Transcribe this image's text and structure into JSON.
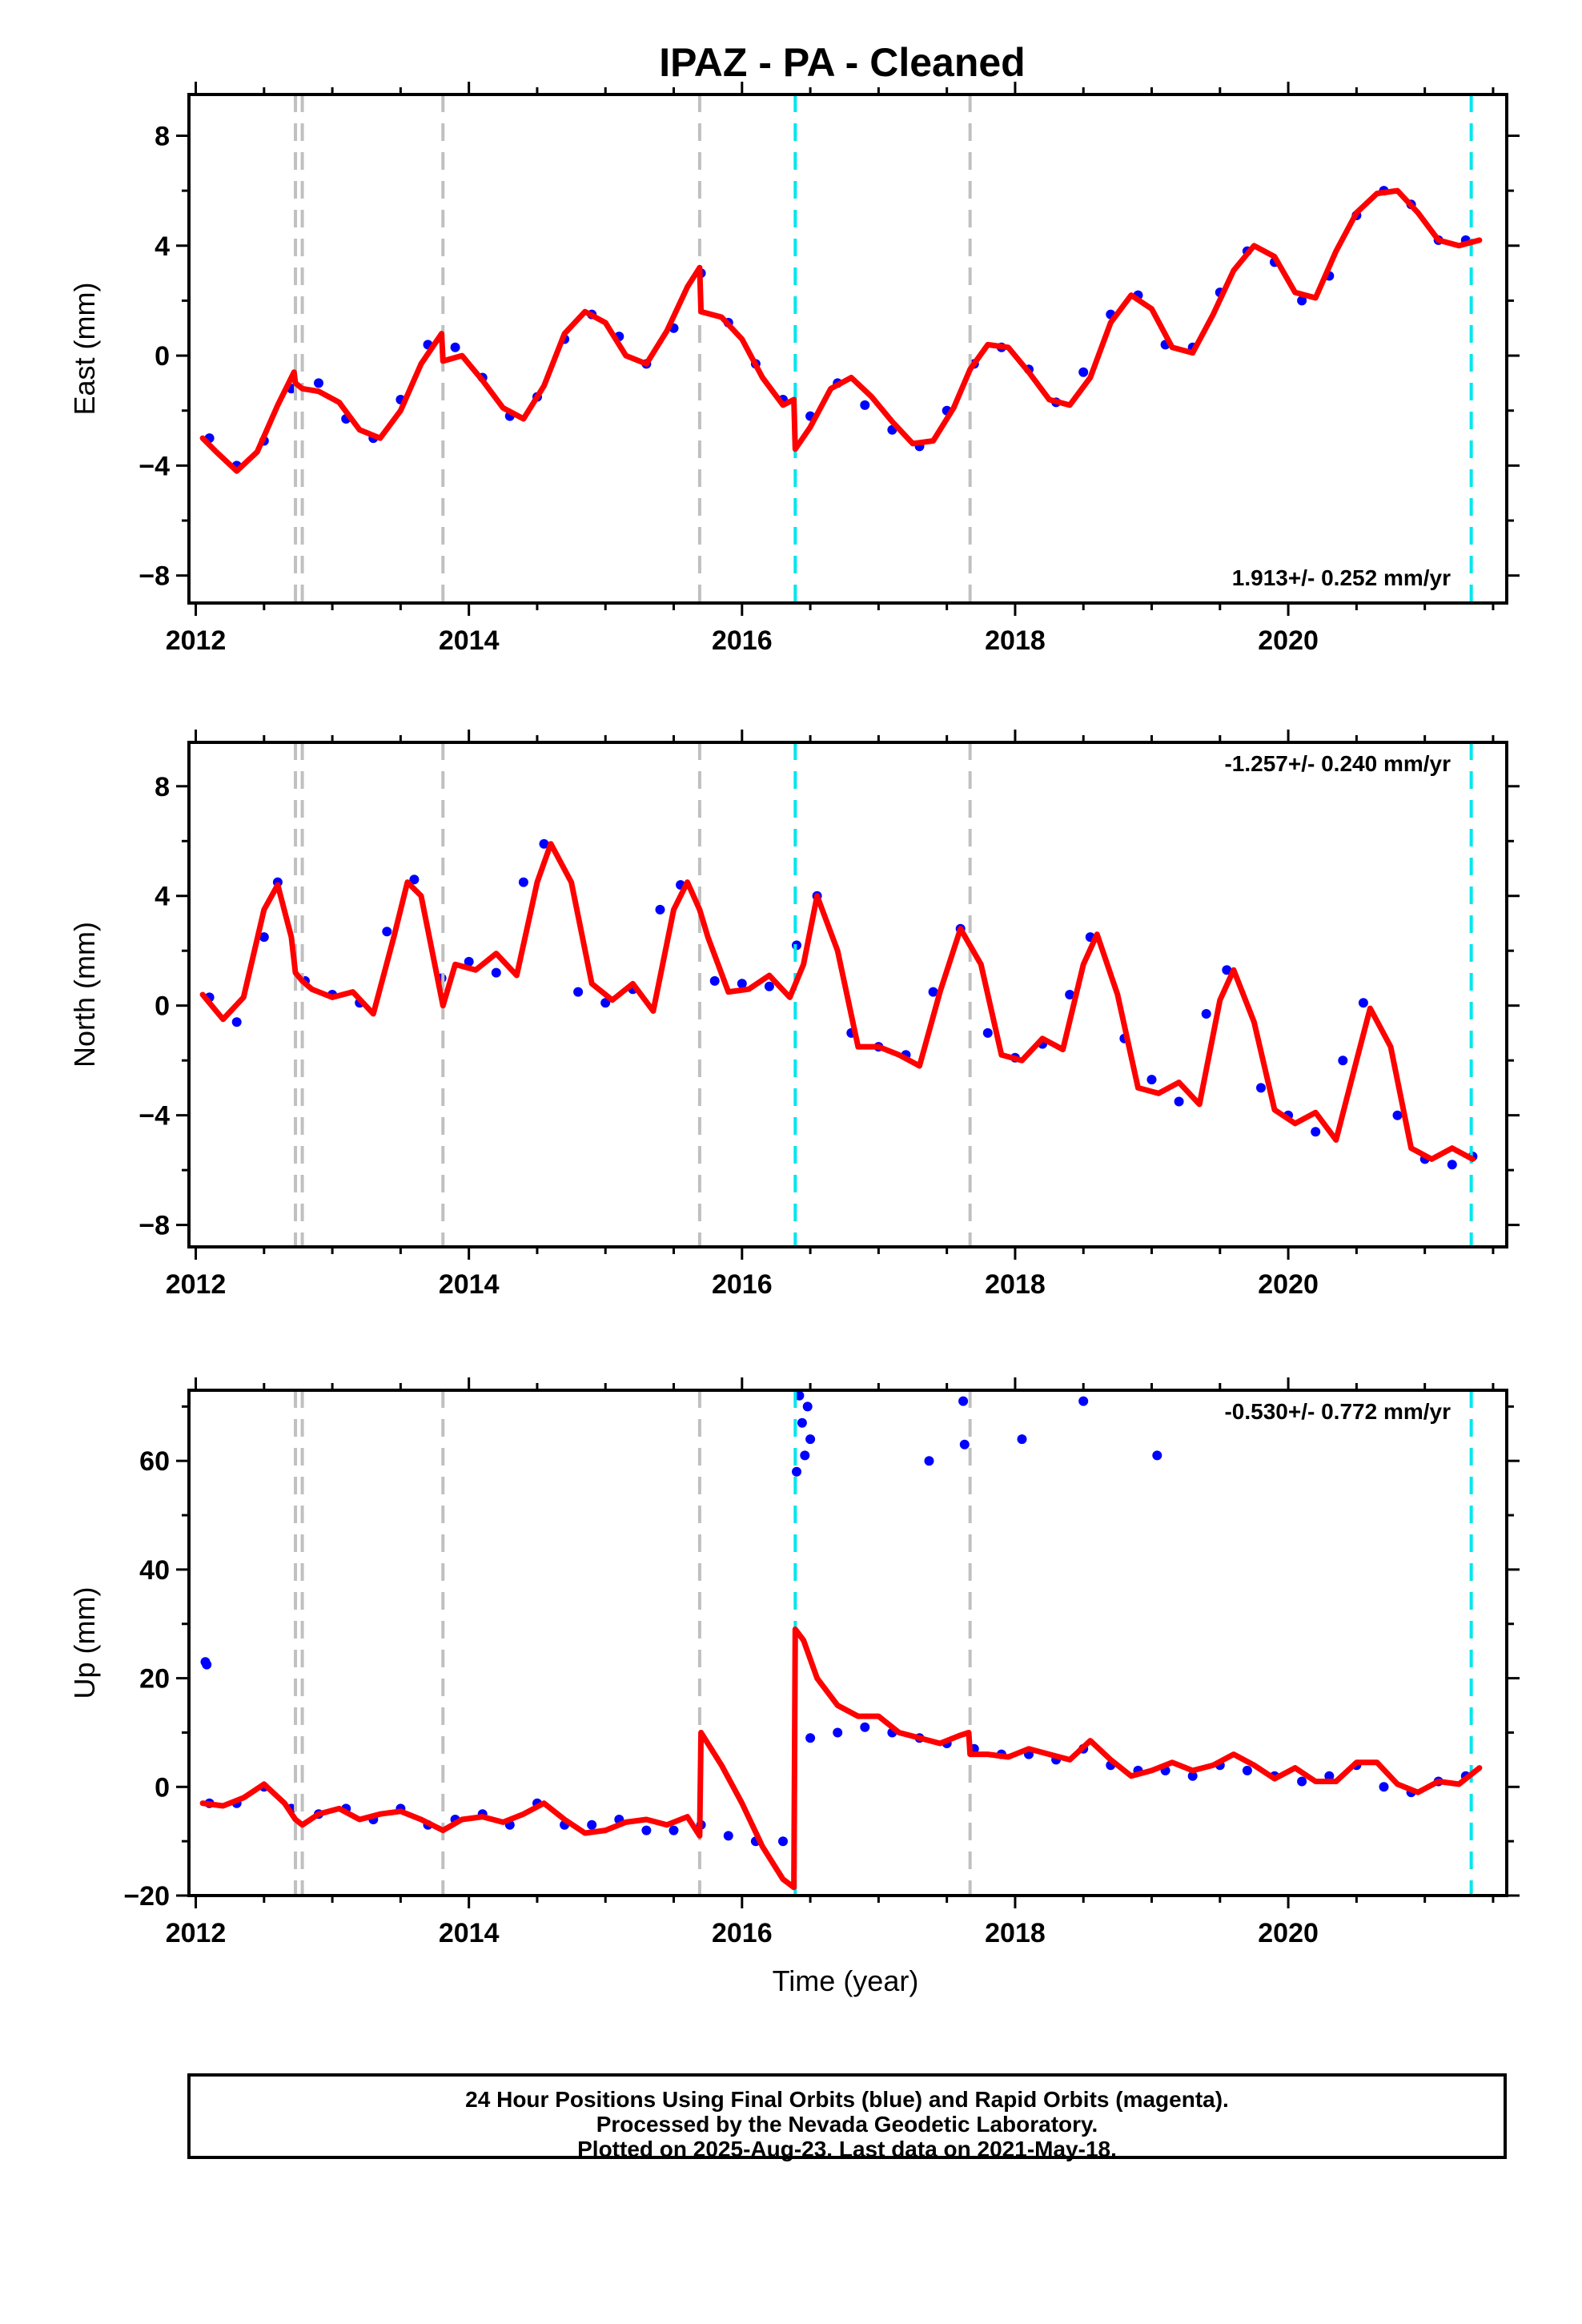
{
  "title": "IPAZ  - PA - Cleaned",
  "colors": {
    "points": "#0000ff",
    "model": "#ff0000",
    "equipment_change": "#c0c0c0",
    "earthquake": "#00e5ee",
    "frame": "#000000"
  },
  "x_axis": {
    "label": "Time (year)",
    "range": [
      2011.95,
      2021.6
    ],
    "ticks": [
      "2012",
      "2014",
      "2016",
      "2018",
      "2020"
    ],
    "minor_step_years": 0.5
  },
  "events": {
    "equipment_changes": [
      2012.73,
      2012.78,
      2013.81,
      2015.69,
      2017.67
    ],
    "earthquakes": [
      2016.39,
      2021.34
    ]
  },
  "footer": {
    "line1": "24 Hour Positions Using Final Orbits (blue) and Rapid Orbits (magenta).",
    "line2": "Processed by the Nevada Geodetic Laboratory.",
    "line3": "Plotted on 2025-Aug-23. Last data on 2021-May-18."
  },
  "chart_data": [
    {
      "type": "scatter",
      "component": "east",
      "ylabel": "East (mm)",
      "ylim": [
        -9,
        9.5
      ],
      "yticks": [
        -8,
        -4,
        0,
        4,
        8
      ],
      "rate_text": "1.913+/- 0.252 mm/yr",
      "rate_position": "bottom-right",
      "grid": false,
      "series": [
        {
          "style": "points",
          "x": [
            2012.1,
            2012.3,
            2012.5,
            2012.7,
            2012.9,
            2013.1,
            2013.3,
            2013.5,
            2013.7,
            2013.9,
            2014.1,
            2014.3,
            2014.5,
            2014.7,
            2014.9,
            2015.1,
            2015.3,
            2015.5,
            2015.7,
            2015.9,
            2016.1,
            2016.3,
            2016.5,
            2016.7,
            2016.9,
            2017.1,
            2017.3,
            2017.5,
            2017.7,
            2017.9,
            2018.1,
            2018.3,
            2018.5,
            2018.7,
            2018.9,
            2019.1,
            2019.3,
            2019.5,
            2019.7,
            2019.9,
            2020.1,
            2020.3,
            2020.5,
            2020.7,
            2020.9,
            2021.1,
            2021.3
          ],
          "y": [
            -3.0,
            -4.0,
            -3.1,
            -1.2,
            -1.0,
            -2.3,
            -3.0,
            -1.6,
            0.4,
            0.3,
            -0.8,
            -2.2,
            -1.5,
            0.6,
            1.5,
            0.7,
            -0.3,
            1.0,
            3.0,
            1.2,
            -0.3,
            -1.6,
            -2.2,
            -1.0,
            -1.8,
            -2.7,
            -3.3,
            -2.0,
            -0.3,
            0.3,
            -0.5,
            -1.7,
            -0.6,
            1.5,
            2.2,
            0.4,
            0.3,
            2.3,
            3.8,
            3.4,
            2.0,
            2.9,
            5.1,
            6.0,
            5.5,
            4.2,
            4.2
          ]
        },
        {
          "style": "line",
          "x": [
            2012.05,
            2012.15,
            2012.3,
            2012.45,
            2012.6,
            2012.72,
            2012.73,
            2012.78,
            2012.9,
            2013.05,
            2013.2,
            2013.35,
            2013.5,
            2013.65,
            2013.8,
            2013.81,
            2013.95,
            2014.1,
            2014.25,
            2014.4,
            2014.55,
            2014.7,
            2014.85,
            2015.0,
            2015.15,
            2015.3,
            2015.45,
            2015.6,
            2015.69,
            2015.7,
            2015.85,
            2016.0,
            2016.15,
            2016.3,
            2016.38,
            2016.39,
            2016.5,
            2016.65,
            2016.8,
            2016.95,
            2017.1,
            2017.25,
            2017.4,
            2017.55,
            2017.67,
            2017.8,
            2017.95,
            2018.1,
            2018.25,
            2018.4,
            2018.55,
            2018.7,
            2018.85,
            2019.0,
            2019.15,
            2019.3,
            2019.45,
            2019.6,
            2019.75,
            2019.9,
            2020.05,
            2020.2,
            2020.35,
            2020.5,
            2020.65,
            2020.8,
            2020.95,
            2021.1,
            2021.25,
            2021.4
          ],
          "y": [
            -3.0,
            -3.5,
            -4.2,
            -3.5,
            -1.8,
            -0.6,
            -1.0,
            -1.2,
            -1.3,
            -1.7,
            -2.7,
            -3.0,
            -2.0,
            -0.3,
            0.8,
            -0.2,
            0.0,
            -0.9,
            -1.9,
            -2.3,
            -1.1,
            0.8,
            1.6,
            1.2,
            0.0,
            -0.3,
            0.9,
            2.5,
            3.2,
            1.6,
            1.4,
            0.6,
            -0.8,
            -1.8,
            -1.6,
            -3.4,
            -2.6,
            -1.2,
            -0.8,
            -1.5,
            -2.4,
            -3.2,
            -3.1,
            -1.9,
            -0.5,
            0.4,
            0.3,
            -0.6,
            -1.6,
            -1.8,
            -0.8,
            1.2,
            2.2,
            1.7,
            0.3,
            0.1,
            1.5,
            3.1,
            4.0,
            3.6,
            2.3,
            2.1,
            3.8,
            5.2,
            5.9,
            6.0,
            5.2,
            4.2,
            4.0,
            4.2
          ]
        }
      ]
    },
    {
      "type": "scatter",
      "component": "north",
      "ylabel": "North (mm)",
      "ylim": [
        -8.8,
        9.6
      ],
      "yticks": [
        -8,
        -4,
        0,
        4,
        8
      ],
      "rate_text": "-1.257+/- 0.240 mm/yr",
      "rate_position": "top-right",
      "grid": false,
      "series": [
        {
          "style": "points",
          "x": [
            2012.1,
            2012.3,
            2012.5,
            2012.6,
            2012.8,
            2013.0,
            2013.2,
            2013.4,
            2013.6,
            2013.8,
            2014.0,
            2014.2,
            2014.4,
            2014.55,
            2014.8,
            2015.0,
            2015.2,
            2015.4,
            2015.55,
            2015.8,
            2016.0,
            2016.2,
            2016.4,
            2016.55,
            2016.8,
            2017.0,
            2017.2,
            2017.4,
            2017.6,
            2017.8,
            2018.0,
            2018.2,
            2018.4,
            2018.55,
            2018.8,
            2019.0,
            2019.2,
            2019.4,
            2019.55,
            2019.8,
            2020.0,
            2020.2,
            2020.4,
            2020.55,
            2020.8,
            2021.0,
            2021.2,
            2021.35
          ],
          "y": [
            0.3,
            -0.6,
            2.5,
            4.5,
            0.9,
            0.4,
            0.1,
            2.7,
            4.6,
            1.0,
            1.6,
            1.2,
            4.5,
            5.9,
            0.5,
            0.1,
            0.6,
            3.5,
            4.4,
            0.9,
            0.8,
            0.7,
            2.2,
            4.0,
            -1.0,
            -1.5,
            -1.8,
            0.5,
            2.8,
            -1.0,
            -1.9,
            -1.4,
            0.4,
            2.5,
            -1.2,
            -2.7,
            -3.5,
            -0.3,
            1.3,
            -3.0,
            -4.0,
            -4.6,
            -2.0,
            0.1,
            -4.0,
            -5.6,
            -5.8,
            -5.5
          ]
        },
        {
          "style": "line",
          "x": [
            2012.05,
            2012.2,
            2012.35,
            2012.5,
            2012.6,
            2012.7,
            2012.73,
            2012.78,
            2012.85,
            2013.0,
            2013.15,
            2013.3,
            2013.45,
            2013.55,
            2013.65,
            2013.81,
            2013.9,
            2014.05,
            2014.2,
            2014.35,
            2014.5,
            2014.6,
            2014.75,
            2014.9,
            2015.05,
            2015.2,
            2015.35,
            2015.5,
            2015.6,
            2015.69,
            2015.75,
            2015.9,
            2016.05,
            2016.2,
            2016.35,
            2016.45,
            2016.55,
            2016.7,
            2016.85,
            2017.0,
            2017.15,
            2017.3,
            2017.45,
            2017.6,
            2017.75,
            2017.9,
            2018.05,
            2018.2,
            2018.35,
            2018.5,
            2018.6,
            2018.75,
            2018.9,
            2019.05,
            2019.2,
            2019.35,
            2019.5,
            2019.6,
            2019.75,
            2019.9,
            2020.05,
            2020.2,
            2020.35,
            2020.5,
            2020.6,
            2020.75,
            2020.9,
            2021.05,
            2021.2,
            2021.35
          ],
          "y": [
            0.4,
            -0.5,
            0.3,
            3.5,
            4.4,
            2.5,
            1.2,
            0.9,
            0.6,
            0.3,
            0.5,
            -0.3,
            2.5,
            4.5,
            4.0,
            0.0,
            1.5,
            1.3,
            1.9,
            1.1,
            4.5,
            5.9,
            4.5,
            0.8,
            0.2,
            0.8,
            -0.2,
            3.5,
            4.5,
            3.5,
            2.5,
            0.5,
            0.6,
            1.1,
            0.3,
            1.5,
            4.0,
            2.0,
            -1.5,
            -1.5,
            -1.8,
            -2.2,
            0.5,
            2.8,
            1.5,
            -1.8,
            -2.0,
            -1.2,
            -1.6,
            1.5,
            2.6,
            0.4,
            -3.0,
            -3.2,
            -2.8,
            -3.6,
            0.2,
            1.3,
            -0.6,
            -3.8,
            -4.3,
            -3.9,
            -4.9,
            -2.0,
            -0.1,
            -1.5,
            -5.2,
            -5.6,
            -5.2,
            -5.6
          ]
        }
      ]
    },
    {
      "type": "scatter",
      "component": "up",
      "ylabel": "Up (mm)",
      "ylim": [
        -20,
        73
      ],
      "yticks": [
        -20,
        0,
        20,
        40,
        60
      ],
      "rate_text": "-0.530+/- 0.772 mm/yr",
      "rate_position": "top-right",
      "grid": false,
      "series": [
        {
          "style": "points",
          "x": [
            2012.1,
            2012.3,
            2012.5,
            2012.7,
            2012.9,
            2013.1,
            2013.3,
            2013.5,
            2013.7,
            2013.9,
            2014.1,
            2014.3,
            2014.5,
            2014.7,
            2014.9,
            2015.1,
            2015.3,
            2015.5,
            2015.7,
            2015.9,
            2016.1,
            2016.3,
            2016.5,
            2016.7,
            2016.9,
            2017.1,
            2017.3,
            2017.5,
            2017.7,
            2017.9,
            2018.1,
            2018.3,
            2018.5,
            2018.7,
            2018.9,
            2019.1,
            2019.3,
            2019.5,
            2019.7,
            2019.9,
            2020.1,
            2020.3,
            2020.5,
            2020.7,
            2020.9,
            2021.1,
            2021.3
          ],
          "y": [
            -3,
            -3,
            0,
            -4,
            -5,
            -4,
            -6,
            -4,
            -7,
            -6,
            -5,
            -7,
            -3,
            -7,
            -7,
            -6,
            -8,
            -8,
            -7,
            -9,
            -10,
            -10,
            9,
            10,
            11,
            10,
            9,
            8,
            7,
            6,
            6,
            5,
            7,
            4,
            3,
            3,
            2,
            4,
            3,
            2,
            1,
            2,
            4,
            0,
            -1,
            1,
            2
          ]
        },
        {
          "style": "points",
          "note": "outliers",
          "x": [
            2012.07,
            2012.08,
            2016.4,
            2016.42,
            2016.44,
            2016.46,
            2016.48,
            2016.5,
            2017.37,
            2017.62,
            2017.63,
            2018.05,
            2018.5,
            2019.04
          ],
          "y": [
            23,
            22.5,
            58,
            72,
            67,
            61,
            70,
            64,
            60,
            71,
            63,
            64,
            71,
            61
          ]
        },
        {
          "style": "line",
          "x": [
            2012.05,
            2012.2,
            2012.35,
            2012.5,
            2012.65,
            2012.73,
            2012.78,
            2012.9,
            2013.05,
            2013.2,
            2013.35,
            2013.5,
            2013.65,
            2013.81,
            2013.95,
            2014.1,
            2014.25,
            2014.4,
            2014.55,
            2014.7,
            2014.85,
            2015.0,
            2015.15,
            2015.3,
            2015.45,
            2015.6,
            2015.69,
            2015.7,
            2015.85,
            2016.0,
            2016.15,
            2016.3,
            2016.38,
            2016.39,
            2016.45,
            2016.55,
            2016.7,
            2016.85,
            2017.0,
            2017.15,
            2017.3,
            2017.45,
            2017.6,
            2017.66,
            2017.67,
            2017.8,
            2017.95,
            2018.1,
            2018.25,
            2018.4,
            2018.55,
            2018.7,
            2018.85,
            2019.0,
            2019.15,
            2019.3,
            2019.45,
            2019.6,
            2019.75,
            2019.9,
            2020.05,
            2020.2,
            2020.35,
            2020.5,
            2020.65,
            2020.8,
            2020.95,
            2021.1,
            2021.25,
            2021.4
          ],
          "y": [
            -3.0,
            -3.5,
            -2.0,
            0.5,
            -3.0,
            -6.0,
            -7.0,
            -5.0,
            -4.0,
            -6.0,
            -5.0,
            -4.5,
            -6.0,
            -8.0,
            -6.0,
            -5.5,
            -6.5,
            -5.0,
            -3.0,
            -6.0,
            -8.5,
            -8.0,
            -6.5,
            -6.0,
            -7.0,
            -5.5,
            -9.0,
            10.0,
            4.0,
            -3.0,
            -11.0,
            -17.0,
            -18.5,
            29.0,
            27.0,
            20.0,
            15.0,
            13.0,
            13.0,
            10.0,
            9.0,
            8.0,
            9.5,
            10.0,
            6.0,
            6.0,
            5.5,
            7.0,
            6.0,
            5.0,
            8.5,
            5.0,
            2.0,
            3.0,
            4.5,
            3.0,
            4.0,
            6.0,
            4.0,
            1.5,
            3.5,
            1.0,
            1.0,
            4.5,
            4.5,
            0.5,
            -1.0,
            1.0,
            0.5,
            3.5
          ]
        }
      ]
    }
  ]
}
